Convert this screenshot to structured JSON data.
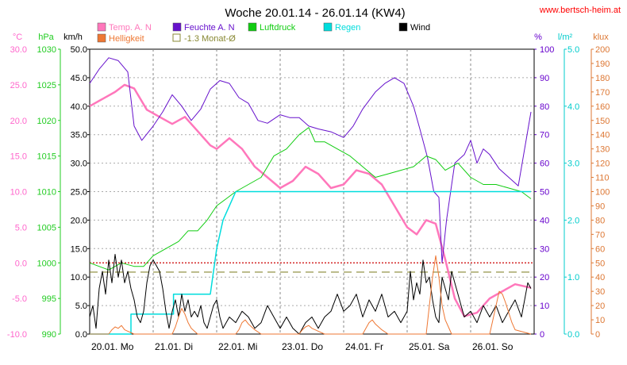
{
  "chart_data": {
    "type": "line",
    "title": "Woche 20.01.14 - 26.01.14 (KW4)",
    "site": "www.bertsch-heim.at",
    "days": [
      "20.01. Mo",
      "21.01. Di",
      "22.01. Mi",
      "23.01. Do",
      "24.01. Fr",
      "25.01. Sa",
      "26.01. So"
    ],
    "axes": [
      {
        "id": "temp",
        "unit": "°C",
        "min": -10,
        "max": 30,
        "step": 5,
        "decimals": 1,
        "color": "#ff66cc"
      },
      {
        "id": "hpa",
        "unit": "hPa",
        "min": 990,
        "max": 1030,
        "step": 5,
        "decimals": 0,
        "color": "#22cc22"
      },
      {
        "id": "kmh",
        "unit": "km/h",
        "min": 0,
        "max": 50,
        "step": 5,
        "decimals": 1,
        "color": "#000000"
      },
      {
        "id": "pct",
        "unit": "%",
        "min": 0,
        "max": 100,
        "step": 10,
        "decimals": 0,
        "color": "#6600cc"
      },
      {
        "id": "lm2",
        "unit": "l/m²",
        "min": 0,
        "max": 5,
        "step": 1,
        "decimals": 1,
        "color": "#00cccc"
      },
      {
        "id": "klux",
        "unit": "klux",
        "min": 0,
        "max": 200,
        "step": 10,
        "decimals": 0,
        "color": "#dd7733"
      }
    ],
    "legend": [
      {
        "label": "Temp. A. N",
        "color": "#ff77bb"
      },
      {
        "label": "Feuchte A. N",
        "color": "#6611cc"
      },
      {
        "label": "Luftdruck",
        "color": "#11cc11"
      },
      {
        "label": "Regen",
        "color": "#00dddd"
      },
      {
        "label": "Wind",
        "color": "#000000"
      },
      {
        "label": "Helligkeit",
        "color": "#ee7733"
      },
      {
        "label": "-1.3 Monat-Ø",
        "color": "#888833"
      }
    ],
    "reference_lines": [
      {
        "axis": "temp",
        "value": 0,
        "color": "#cc0000",
        "style": "dotted"
      },
      {
        "axis": "temp",
        "value": -1.3,
        "color": "#888833",
        "style": "dashed"
      }
    ],
    "series": [
      {
        "name": "Temp. A. N",
        "axis": "temp",
        "color": "#ff77bb",
        "width": 2.5,
        "x": [
          0,
          0.2,
          0.4,
          0.55,
          0.7,
          0.9,
          1.1,
          1.3,
          1.5,
          1.7,
          1.9,
          2.0,
          2.2,
          2.4,
          2.6,
          2.8,
          3.0,
          3.2,
          3.4,
          3.6,
          3.8,
          4.0,
          4.2,
          4.4,
          4.6,
          4.8,
          5.0,
          5.15,
          5.3,
          5.45,
          5.6,
          5.75,
          5.9,
          6.1,
          6.3,
          6.5,
          6.7,
          6.95
        ],
        "y": [
          22,
          23,
          24,
          25,
          24.5,
          21.5,
          20.5,
          19.5,
          20.5,
          18.5,
          16.5,
          16,
          17.5,
          16,
          13.5,
          12,
          10.5,
          11.5,
          13.5,
          12.5,
          10.5,
          11,
          13,
          12.5,
          11,
          8,
          5,
          4,
          6,
          5.5,
          0.5,
          -5,
          -7.5,
          -7,
          -5,
          -4,
          -3,
          -3.5
        ]
      },
      {
        "name": "Feuchte A. N",
        "axis": "pct",
        "color": "#6611cc",
        "width": 1,
        "x": [
          0,
          0.15,
          0.3,
          0.45,
          0.6,
          0.7,
          0.82,
          1.0,
          1.15,
          1.3,
          1.45,
          1.6,
          1.75,
          1.9,
          2.05,
          2.2,
          2.35,
          2.5,
          2.65,
          2.8,
          3.0,
          3.15,
          3.3,
          3.45,
          3.6,
          3.8,
          4.0,
          4.15,
          4.3,
          4.5,
          4.65,
          4.8,
          4.95,
          5.1,
          5.2,
          5.32,
          5.42,
          5.5,
          5.55,
          5.62,
          5.75,
          5.9,
          6.0,
          6.1,
          6.2,
          6.3,
          6.45,
          6.6,
          6.75,
          6.95
        ],
        "y": [
          88,
          93,
          97,
          96,
          92,
          73,
          68,
          73,
          78,
          84,
          80,
          75,
          79,
          86,
          89,
          88,
          83,
          81,
          75,
          74,
          77,
          76,
          76,
          73,
          72,
          71,
          69,
          73,
          79,
          85,
          88,
          90,
          88,
          80,
          72,
          62,
          50,
          48,
          25,
          40,
          60,
          63,
          68,
          60,
          65,
          63,
          58,
          55,
          52,
          78
        ]
      },
      {
        "name": "Luftdruck",
        "axis": "hpa",
        "color": "#11cc11",
        "width": 1,
        "x": [
          0,
          0.3,
          0.5,
          0.7,
          0.85,
          1.0,
          1.2,
          1.4,
          1.55,
          1.7,
          1.85,
          2.0,
          2.15,
          2.3,
          2.5,
          2.7,
          2.9,
          3.1,
          3.3,
          3.45,
          3.55,
          3.7,
          3.9,
          4.1,
          4.3,
          4.5,
          4.7,
          4.9,
          5.1,
          5.3,
          5.45,
          5.6,
          5.8,
          6.0,
          6.2,
          6.4,
          6.6,
          6.8,
          6.95
        ],
        "y": [
          1000,
          999,
          1000,
          999.5,
          999.5,
          1001,
          1002,
          1003,
          1004.5,
          1004.5,
          1006,
          1008,
          1009,
          1010,
          1011,
          1012,
          1015,
          1016,
          1018,
          1019,
          1017,
          1017,
          1016,
          1015,
          1013.5,
          1012,
          1012.5,
          1013,
          1013.5,
          1015,
          1014.5,
          1013,
          1014,
          1012,
          1011,
          1011,
          1010.5,
          1010,
          1009
        ]
      },
      {
        "name": "Regen",
        "axis": "lm2",
        "color": "#00dddd",
        "width": 1.5,
        "x": [
          0,
          0.65,
          0.65,
          1.32,
          1.32,
          1.7,
          1.9,
          2.0,
          2.1,
          2.3,
          2.5,
          3.5,
          4.5,
          5.5,
          6.5,
          6.95
        ],
        "y": [
          0,
          0,
          0.35,
          0.35,
          0.7,
          0.7,
          0.7,
          1.5,
          2.0,
          2.5,
          2.5,
          2.5,
          2.5,
          2.5,
          2.5,
          2.5
        ]
      },
      {
        "name": "Wind",
        "axis": "kmh",
        "color": "#000000",
        "width": 1,
        "x": [
          0,
          0.05,
          0.1,
          0.15,
          0.2,
          0.25,
          0.3,
          0.35,
          0.4,
          0.45,
          0.5,
          0.55,
          0.6,
          0.65,
          0.7,
          0.75,
          0.8,
          0.85,
          0.9,
          0.95,
          1.0,
          1.05,
          1.1,
          1.15,
          1.2,
          1.25,
          1.3,
          1.35,
          1.4,
          1.45,
          1.5,
          1.55,
          1.6,
          1.65,
          1.7,
          1.75,
          1.8,
          1.85,
          1.9,
          1.95,
          2.0,
          2.05,
          2.1,
          2.2,
          2.3,
          2.4,
          2.5,
          2.6,
          2.7,
          2.8,
          2.9,
          3.0,
          3.1,
          3.2,
          3.3,
          3.4,
          3.5,
          3.6,
          3.7,
          3.8,
          3.9,
          4.0,
          4.1,
          4.2,
          4.3,
          4.4,
          4.5,
          4.6,
          4.7,
          4.8,
          4.9,
          5.0,
          5.05,
          5.1,
          5.15,
          5.2,
          5.25,
          5.3,
          5.35,
          5.4,
          5.45,
          5.5,
          5.55,
          5.6,
          5.65,
          5.7,
          5.75,
          5.8,
          5.9,
          6.0,
          6.1,
          6.2,
          6.3,
          6.4,
          6.5,
          6.6,
          6.7,
          6.8,
          6.9,
          6.95
        ],
        "y": [
          3,
          5,
          1,
          8,
          11,
          7,
          13,
          9,
          14,
          10,
          13,
          9,
          11,
          8,
          6,
          3,
          2,
          4,
          9,
          12,
          13,
          12,
          11,
          8,
          4,
          1,
          4,
          6,
          3,
          7,
          4,
          6,
          3,
          4,
          3,
          5,
          2,
          1,
          3,
          5,
          6,
          3,
          1,
          3,
          2,
          4,
          3,
          1,
          2,
          5,
          3,
          1,
          3,
          1,
          0,
          2,
          3,
          1,
          3,
          4,
          7,
          4,
          5,
          7,
          3,
          6,
          4,
          7,
          3,
          4,
          2,
          4,
          11,
          6,
          9,
          7,
          13,
          9,
          10,
          6,
          3,
          2,
          10,
          8,
          6,
          11,
          9,
          7,
          3,
          4,
          2,
          5,
          3,
          5,
          2,
          4,
          6,
          3,
          9,
          8
        ]
      },
      {
        "name": "Helligkeit",
        "axis": "klux",
        "color": "#ee7733",
        "width": 1,
        "x": [
          0,
          0.3,
          0.35,
          0.4,
          0.45,
          0.5,
          0.55,
          0.6,
          0.7,
          1.3,
          1.35,
          1.4,
          1.45,
          1.5,
          1.55,
          1.6,
          1.65,
          1.7,
          2.3,
          2.35,
          2.4,
          2.45,
          2.5,
          2.55,
          2.6,
          2.7,
          3.3,
          3.35,
          3.4,
          3.45,
          3.5,
          3.55,
          3.6,
          3.7,
          4.3,
          4.35,
          4.4,
          4.45,
          4.5,
          4.55,
          4.6,
          4.7,
          5.3,
          5.35,
          5.4,
          5.45,
          5.5,
          5.55,
          5.6,
          5.65,
          5.7,
          6.3,
          6.35,
          6.4,
          6.45,
          6.5,
          6.55,
          6.6,
          6.65,
          6.7,
          6.95
        ],
        "y": [
          0,
          0,
          3,
          5,
          4,
          6,
          3,
          2,
          0,
          0,
          5,
          12,
          18,
          14,
          8,
          4,
          2,
          0,
          0,
          3,
          8,
          10,
          7,
          5,
          3,
          0,
          0,
          3,
          5,
          6,
          4,
          3,
          2,
          0,
          0,
          4,
          8,
          10,
          7,
          5,
          3,
          0,
          0,
          20,
          40,
          55,
          40,
          20,
          10,
          5,
          0,
          0,
          10,
          20,
          30,
          28,
          22,
          15,
          8,
          3,
          0
        ]
      }
    ]
  }
}
